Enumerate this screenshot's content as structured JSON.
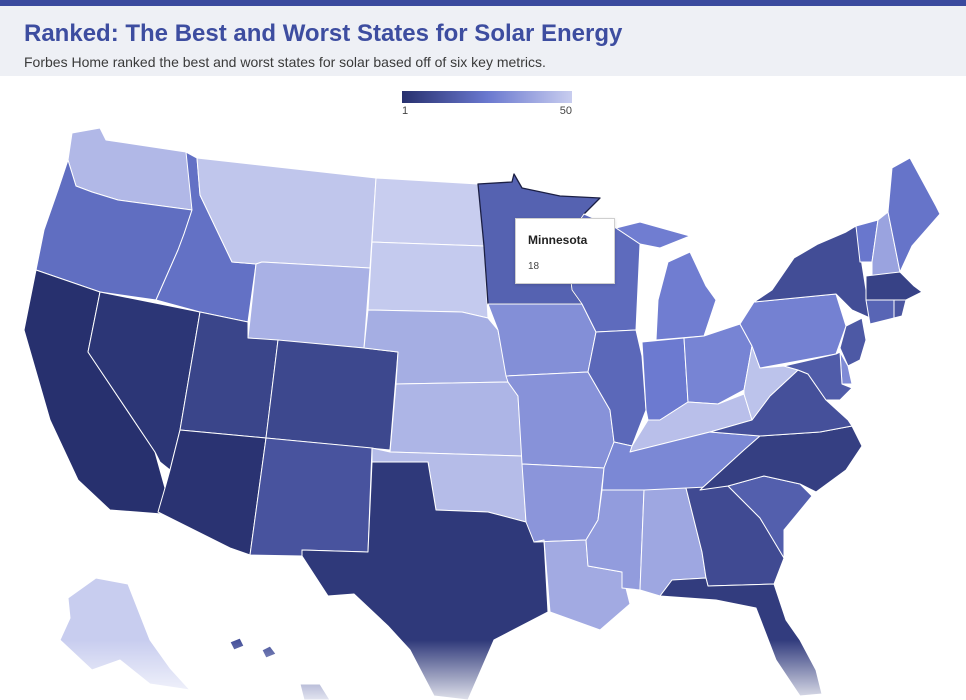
{
  "header": {
    "title": "Ranked: The Best and Worst States for Solar Energy",
    "subtitle": "Forbes Home ranked the best and worst states for solar based off of six key metrics."
  },
  "legend": {
    "min_label": "1",
    "max_label": "50",
    "color_best": "#27306e",
    "color_worst": "#c8cdef"
  },
  "tooltip": {
    "state": "Minnesota",
    "rank": "18"
  },
  "colors": {
    "header_background": "#eef0f5",
    "title": "#3d4da0",
    "top_bar": "#3a4a9e"
  },
  "states": {
    "WA": {
      "rank": 44
    },
    "OR": {
      "rank": 22
    },
    "CA": {
      "rank": 1
    },
    "NV": {
      "rank": 3
    },
    "ID": {
      "rank": 23
    },
    "MT": {
      "rank": 48
    },
    "WY": {
      "rank": 42
    },
    "UT": {
      "rank": 8
    },
    "AZ": {
      "rank": 2
    },
    "CO": {
      "rank": 9
    },
    "NM": {
      "rank": 13
    },
    "ND": {
      "rank": 50
    },
    "SD": {
      "rank": 49
    },
    "NE": {
      "rank": 41
    },
    "KS": {
      "rank": 43
    },
    "OK": {
      "rank": 45
    },
    "TX": {
      "rank": 4
    },
    "MN": {
      "rank": 18
    },
    "IA": {
      "rank": 32
    },
    "MO": {
      "rank": 33
    },
    "AR": {
      "rank": 34
    },
    "LA": {
      "rank": 40
    },
    "WI": {
      "rank": 21
    },
    "IL": {
      "rank": 20
    },
    "MI": {
      "rank": 27
    },
    "IN": {
      "rank": 26
    },
    "OH": {
      "rank": 29
    },
    "KY": {
      "rank": 46
    },
    "TN": {
      "rank": 30
    },
    "MS": {
      "rank": 36
    },
    "AL": {
      "rank": 39
    },
    "GA": {
      "rank": 10
    },
    "FL": {
      "rank": 5
    },
    "SC": {
      "rank": 17
    },
    "NC": {
      "rank": 6
    },
    "VA": {
      "rank": 12
    },
    "WV": {
      "rank": 47
    },
    "PA": {
      "rank": 28
    },
    "NY": {
      "rank": 11
    },
    "VT": {
      "rank": 25
    },
    "NH": {
      "rank": 38
    },
    "ME": {
      "rank": 24
    },
    "MA": {
      "rank": 7
    },
    "CT": {
      "rank": 19
    },
    "RI": {
      "rank": 14
    },
    "NJ": {
      "rank": 15
    },
    "DE": {
      "rank": 31
    },
    "MD": {
      "rank": 16
    },
    "AK": {
      "rank": 50
    },
    "HI": {
      "rank": 12
    }
  }
}
